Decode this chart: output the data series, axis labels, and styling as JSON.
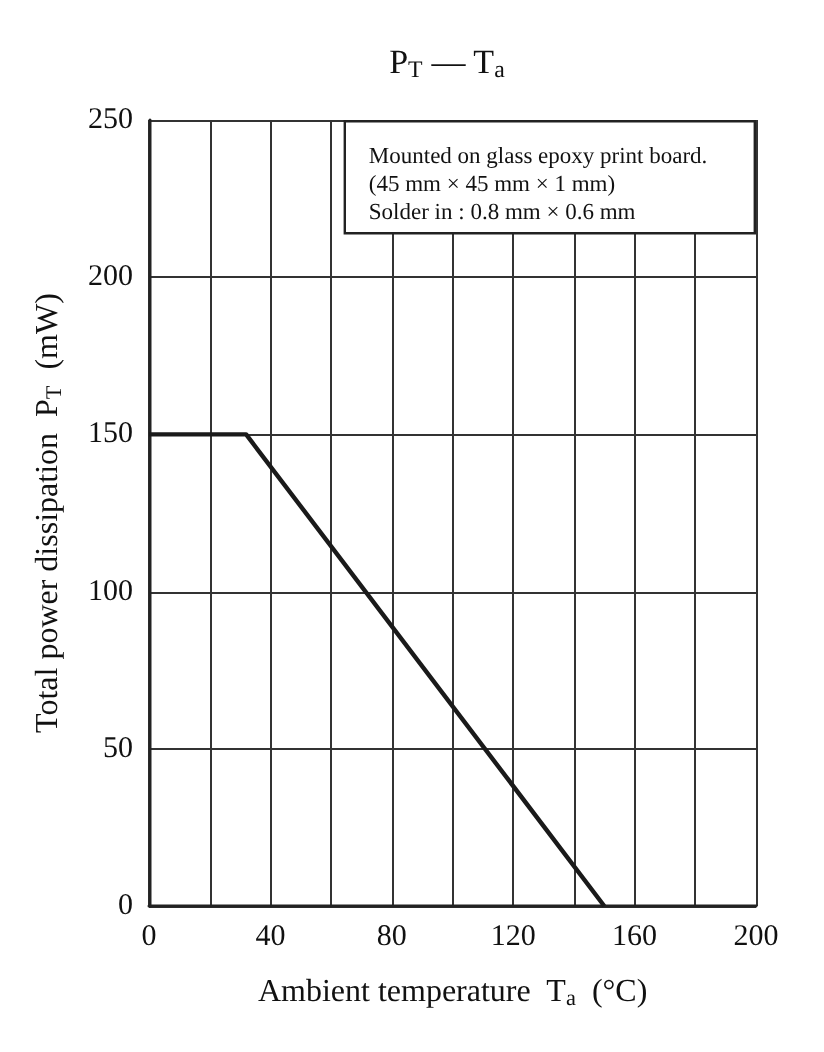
{
  "chart_data": {
    "type": "line",
    "title": "P$_{T}$ — T$_{a}$",
    "xlabel": "Ambient temperature  T$_{a}$  (°C)",
    "ylabel": "Total power dissipation  P$_{T}$  (mW)",
    "x": [
      0,
      32,
      150
    ],
    "series": [
      {
        "color": "#1a1a1a",
        "values": [
          150,
          150,
          0
        ]
      }
    ],
    "xlim": [
      0,
      200
    ],
    "xticks": [
      0,
      {
        "value": 20,
        "label": null
      },
      40,
      {
        "value": 60,
        "label": null
      },
      80,
      {
        "value": 100,
        "label": null
      },
      120,
      {
        "value": 140,
        "label": null
      },
      160,
      {
        "value": 180,
        "label": null
      },
      200
    ],
    "ylim": [
      0,
      250
    ],
    "yticks": [
      0,
      50,
      100,
      150,
      200,
      250
    ],
    "grid": true,
    "marker": "none",
    "line_style": "solid",
    "annotations": [
      "Mounted on glass epoxy print board.",
      "(45 mm × 45 mm × 1 mm)",
      "Solder in : 0.8 mm × 0.6 mm"
    ]
  }
}
